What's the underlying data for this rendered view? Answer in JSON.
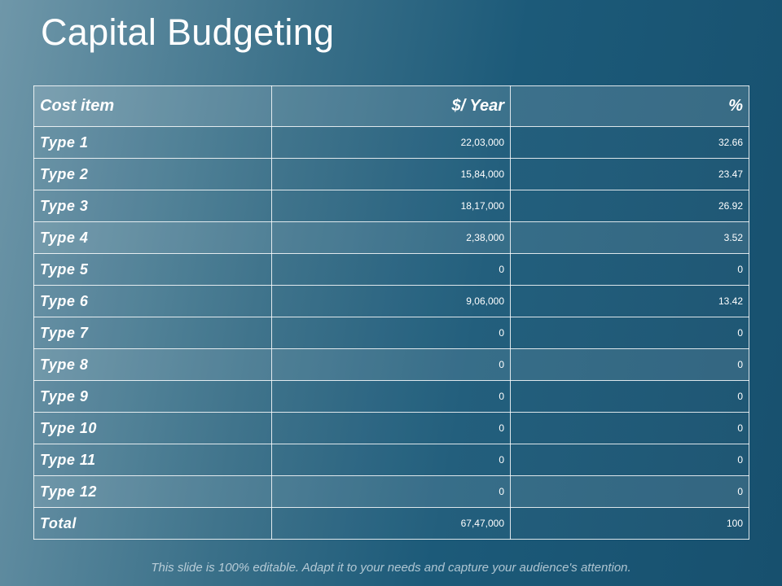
{
  "slide": {
    "title": "Capital Budgeting",
    "footer": "This slide is 100% editable. Adapt it to your needs and capture your audience's attention."
  },
  "table": {
    "headers": [
      "Cost item",
      "$/ Year",
      "%"
    ],
    "rows": [
      {
        "item": "Type 1",
        "per_year": "22,03,000",
        "percent": "32.66"
      },
      {
        "item": "Type 2",
        "per_year": "15,84,000",
        "percent": "23.47"
      },
      {
        "item": "Type 3",
        "per_year": "18,17,000",
        "percent": "26.92"
      },
      {
        "item": "Type 4",
        "per_year": "2,38,000",
        "percent": "3.52"
      },
      {
        "item": "Type 5",
        "per_year": "0",
        "percent": "0"
      },
      {
        "item": "Type 6",
        "per_year": "9,06,000",
        "percent": "13.42"
      },
      {
        "item": "Type 7",
        "per_year": "0",
        "percent": "0"
      },
      {
        "item": "Type 8",
        "per_year": "0",
        "percent": "0"
      },
      {
        "item": "Type 9",
        "per_year": "0",
        "percent": "0"
      },
      {
        "item": "Type 10",
        "per_year": "0",
        "percent": "0"
      },
      {
        "item": "Type 11",
        "per_year": "0",
        "percent": "0"
      },
      {
        "item": "Type 12",
        "per_year": "0",
        "percent": "0"
      },
      {
        "item": "Total",
        "per_year": "67,47,000",
        "percent": "100"
      }
    ]
  },
  "colors": {
    "background_light": "#6f97a9",
    "background_dark": "#17506e",
    "text": "#ffffff"
  }
}
